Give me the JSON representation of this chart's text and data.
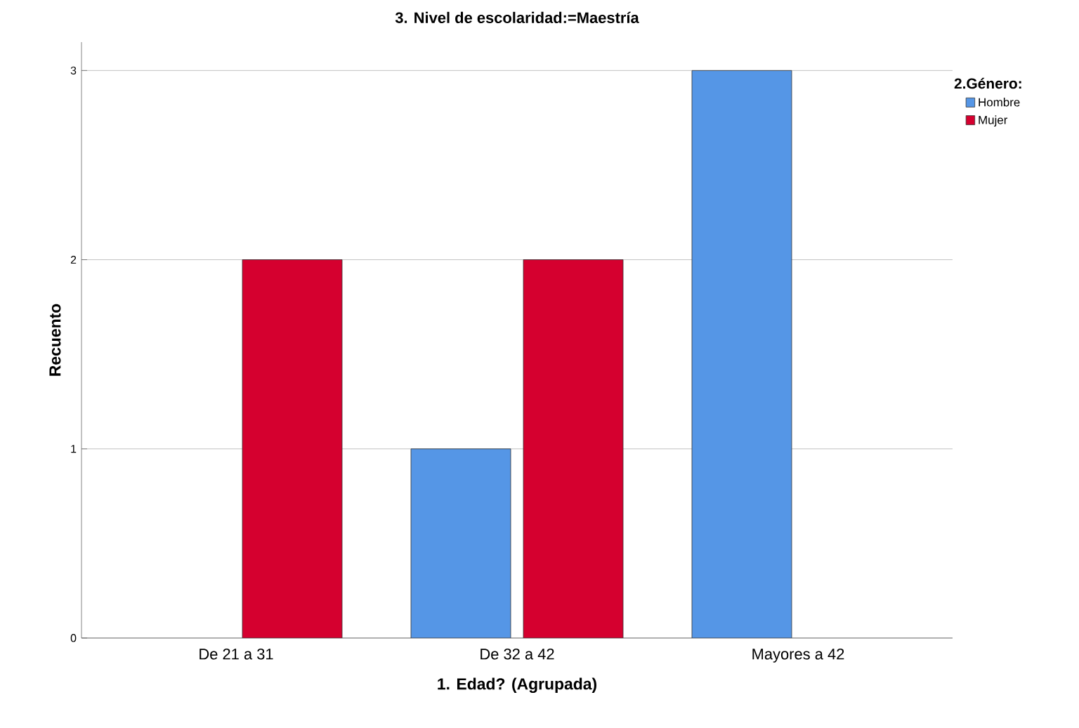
{
  "chart_data": {
    "type": "bar",
    "title": "3. Nivel de escolaridad:=Maestría",
    "xlabel": "1. Edad? (Agrupada)",
    "ylabel": "Recuento",
    "legend_title": "2.Género:",
    "categories": [
      "De 21 a 31",
      "De 32 a 42",
      "Mayores a 42"
    ],
    "series": [
      {
        "name": "Hombre",
        "color": "#5596e6",
        "values": [
          null,
          1,
          3
        ]
      },
      {
        "name": "Mujer",
        "color": "#d5002f",
        "values": [
          2,
          2,
          null
        ]
      }
    ],
    "ylim": [
      0,
      3.15
    ],
    "yticks": [
      0,
      1,
      2,
      3
    ],
    "grid": "y",
    "legend": "top right"
  }
}
